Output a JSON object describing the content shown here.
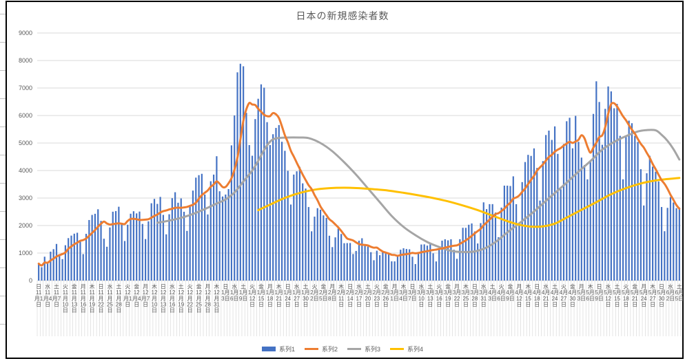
{
  "frame": {
    "background": "#FFFFFF",
    "border_color": "#000000"
  },
  "title": {
    "text": "日本の新規感染者数",
    "color": "#595959"
  },
  "colors": {
    "bar": "#4472C4",
    "line2": "#ED7D31",
    "line3": "#A5A5A5",
    "line4": "#FFC000",
    "grid": "#D9D9D9",
    "axis_text": "#595959"
  },
  "y_axis": {
    "min": 0,
    "max": 9000,
    "step": 1000,
    "labels": [
      "0",
      "1000",
      "2000",
      "3000",
      "4000",
      "5000",
      "6000",
      "7000",
      "8000",
      "9000"
    ]
  },
  "x_axis": {
    "note": "ticks every 3 days, weekday shown above date",
    "ticks": [
      {
        "w": "日",
        "m": "11",
        "d": "1"
      },
      {
        "w": "水",
        "m": "11",
        "d": "4"
      },
      {
        "w": "土",
        "m": "11",
        "d": "7"
      },
      {
        "w": "火",
        "m": "11",
        "d": "10"
      },
      {
        "w": "金",
        "m": "11",
        "d": "13"
      },
      {
        "w": "月",
        "m": "11",
        "d": "16"
      },
      {
        "w": "木",
        "m": "11",
        "d": "19"
      },
      {
        "w": "日",
        "m": "11",
        "d": "22"
      },
      {
        "w": "水",
        "m": "11",
        "d": "25"
      },
      {
        "w": "土",
        "m": "11",
        "d": "28"
      },
      {
        "w": "火",
        "m": "12",
        "d": "1"
      },
      {
        "w": "金",
        "m": "12",
        "d": "4"
      },
      {
        "w": "月",
        "m": "12",
        "d": "7"
      },
      {
        "w": "木",
        "m": "12",
        "d": "10"
      },
      {
        "w": "日",
        "m": "12",
        "d": "13"
      },
      {
        "w": "水",
        "m": "12",
        "d": "16"
      },
      {
        "w": "土",
        "m": "12",
        "d": "19"
      },
      {
        "w": "火",
        "m": "12",
        "d": "22"
      },
      {
        "w": "金",
        "m": "12",
        "d": "25"
      },
      {
        "w": "月",
        "m": "12",
        "d": "28"
      },
      {
        "w": "木",
        "m": "12",
        "d": "31"
      },
      {
        "w": "日",
        "m": "1",
        "d": "3"
      },
      {
        "w": "水",
        "m": "1",
        "d": "6"
      },
      {
        "w": "土",
        "m": "1",
        "d": "9"
      },
      {
        "w": "火",
        "m": "1",
        "d": "12"
      },
      {
        "w": "金",
        "m": "1",
        "d": "15"
      },
      {
        "w": "月",
        "m": "1",
        "d": "18"
      },
      {
        "w": "木",
        "m": "1",
        "d": "21"
      },
      {
        "w": "日",
        "m": "1",
        "d": "24"
      },
      {
        "w": "水",
        "m": "1",
        "d": "27"
      },
      {
        "w": "土",
        "m": "1",
        "d": "30"
      },
      {
        "w": "火",
        "m": "2",
        "d": "2"
      },
      {
        "w": "金",
        "m": "2",
        "d": "5"
      },
      {
        "w": "月",
        "m": "2",
        "d": "8"
      },
      {
        "w": "木",
        "m": "2",
        "d": "11"
      },
      {
        "w": "日",
        "m": "2",
        "d": "14"
      },
      {
        "w": "水",
        "m": "2",
        "d": "17"
      },
      {
        "w": "土",
        "m": "2",
        "d": "20"
      },
      {
        "w": "火",
        "m": "2",
        "d": "23"
      },
      {
        "w": "金",
        "m": "2",
        "d": "26"
      },
      {
        "w": "月",
        "m": "3",
        "d": "1"
      },
      {
        "w": "木",
        "m": "3",
        "d": "4"
      },
      {
        "w": "日",
        "m": "3",
        "d": "7"
      },
      {
        "w": "水",
        "m": "3",
        "d": "10"
      },
      {
        "w": "土",
        "m": "3",
        "d": "13"
      },
      {
        "w": "火",
        "m": "3",
        "d": "16"
      },
      {
        "w": "金",
        "m": "3",
        "d": "19"
      },
      {
        "w": "月",
        "m": "3",
        "d": "22"
      },
      {
        "w": "木",
        "m": "3",
        "d": "25"
      },
      {
        "w": "日",
        "m": "3",
        "d": "28"
      },
      {
        "w": "水",
        "m": "3",
        "d": "31"
      },
      {
        "w": "土",
        "m": "4",
        "d": "3"
      },
      {
        "w": "火",
        "m": "4",
        "d": "6"
      },
      {
        "w": "金",
        "m": "4",
        "d": "9"
      },
      {
        "w": "月",
        "m": "4",
        "d": "12"
      },
      {
        "w": "木",
        "m": "4",
        "d": "15"
      },
      {
        "w": "日",
        "m": "4",
        "d": "18"
      },
      {
        "w": "水",
        "m": "4",
        "d": "21"
      },
      {
        "w": "土",
        "m": "4",
        "d": "24"
      },
      {
        "w": "火",
        "m": "4",
        "d": "27"
      },
      {
        "w": "金",
        "m": "4",
        "d": "30"
      },
      {
        "w": "月",
        "m": "5",
        "d": "3"
      },
      {
        "w": "木",
        "m": "5",
        "d": "6"
      },
      {
        "w": "日",
        "m": "5",
        "d": "9"
      },
      {
        "w": "水",
        "m": "5",
        "d": "12"
      },
      {
        "w": "土",
        "m": "5",
        "d": "15"
      },
      {
        "w": "火",
        "m": "5",
        "d": "18"
      },
      {
        "w": "金",
        "m": "5",
        "d": "21"
      },
      {
        "w": "月",
        "m": "5",
        "d": "24"
      },
      {
        "w": "木",
        "m": "5",
        "d": "27"
      },
      {
        "w": "日",
        "m": "5",
        "d": "30"
      },
      {
        "w": "水",
        "m": "6",
        "d": "2"
      },
      {
        "w": "土",
        "m": "6",
        "d": "5"
      }
    ]
  },
  "legend": {
    "items": [
      {
        "label": "系列1",
        "color": "#4472C4",
        "swatch": "bar"
      },
      {
        "label": "系列2",
        "color": "#ED7D31",
        "swatch": "line"
      },
      {
        "label": "系列3",
        "color": "#A5A5A5",
        "swatch": "line"
      },
      {
        "label": "系列4",
        "color": "#FFC000",
        "swatch": "line"
      }
    ]
  },
  "chart_data": {
    "type": "combo",
    "title": "日本の新規感染者数",
    "x_unit": "day",
    "x_range_labels": [
      "11月1日",
      "6月5日"
    ],
    "n_points": 217,
    "ylim": [
      0,
      9000
    ],
    "grid": true,
    "legend_position": "bottom",
    "series": [
      {
        "name": "系列1",
        "type": "bar",
        "color": "#4472C4",
        "values": [
          614,
          486,
          867,
          620,
          1050,
          1141,
          1331,
          957,
          780,
          1284,
          1543,
          1634,
          1704,
          1738,
          1440,
          962,
          1699,
          2201,
          2386,
          2427,
          2592,
          2168,
          1521,
          1229,
          1931,
          2503,
          2527,
          2684,
          2066,
          1438,
          2030,
          2430,
          2520,
          2442,
          2508,
          2058,
          1509,
          2152,
          2810,
          2969,
          2787,
          3041,
          2388,
          1680,
          2410,
          2994,
          3211,
          2829,
          2986,
          2501,
          1805,
          2688,
          3271,
          3742,
          3832,
          3881,
          3127,
          2403,
          3610,
          3852,
          4520,
          3246,
          3056,
          3127,
          3325,
          4915,
          6004,
          7570,
          7882,
          7790,
          6097,
          4925,
          4538,
          5870,
          6609,
          7133,
          7014,
          5759,
          4925,
          5320,
          5549,
          5653,
          5045,
          4717,
          3989,
          2764,
          3853,
          3971,
          4133,
          3534,
          3344,
          2673,
          1791,
          2324,
          2631,
          2576,
          2370,
          2277,
          1630,
          1216,
          1570,
          1887,
          1693,
          1358,
          1362,
          1364,
          965,
          1077,
          1448,
          1538,
          1301,
          1234,
          1032,
          739,
          1085,
          922,
          1076,
          1029,
          999,
          698,
          697,
          888,
          1121,
          1173,
          1148,
          1136,
          866,
          599,
          972,
          1310,
          1316,
          1271,
          1320,
          989,
          695,
          1133,
          1451,
          1500,
          1463,
          1500,
          1120,
          791,
          1504,
          1918,
          1917,
          2029,
          2076,
          1785,
          1348,
          2087,
          2843,
          2597,
          2778,
          2779,
          2472,
          1576,
          2653,
          3451,
          3450,
          3438,
          3789,
          2777,
          2087,
          3579,
          4309,
          4570,
          4532,
          4805,
          4093,
          2908,
          4342,
          5291,
          5452,
          5113,
          5605,
          4605,
          3318,
          4965,
          5792,
          5918,
          4808,
          5986,
          5044,
          4470,
          4199,
          3680,
          4365,
          6058,
          7244,
          6493,
          4936,
          6243,
          7057,
          6879,
          6263,
          6421,
          5262,
          3680,
          5229,
          5814,
          5720,
          5260,
          5040,
          4048,
          2729,
          3901,
          4536,
          4142,
          3955,
          3604,
          2674,
          1794,
          2643,
          3035,
          2837,
          2632,
          2654
        ]
      },
      {
        "name": "系列2",
        "type": "line",
        "color": "#ED7D31",
        "values": [
          614,
          550,
          656,
          647,
          727,
          796,
          873,
          922,
          964,
          1023,
          1155,
          1239,
          1319,
          1377,
          1446,
          1472,
          1531,
          1625,
          1733,
          1836,
          1958,
          2062,
          2142,
          2075,
          2036,
          2053,
          2067,
          2080,
          2066,
          2054,
          2168,
          2240,
          2242,
          2230,
          2205,
          2204,
          2214,
          2231,
          2286,
          2350,
          2399,
          2475,
          2522,
          2547,
          2584,
          2610,
          2644,
          2650,
          2643,
          2659,
          2677,
          2716,
          2756,
          2832,
          2975,
          3103,
          3192,
          3278,
          3409,
          3492,
          3604,
          3520,
          3402,
          3402,
          3534,
          3720,
          4028,
          4463,
          5126,
          5802,
          6226,
          6455,
          6401,
          6382,
          6244,
          6137,
          6027,
          5978,
          5978,
          6090,
          6044,
          5908,
          5609,
          5281,
          5028,
          4720,
          4510,
          4285,
          4067,
          3852,
          3655,
          3467,
          3328,
          3110,
          2919,
          2696,
          2530,
          2377,
          2228,
          2146,
          2039,
          1932,
          1806,
          1662,
          1531,
          1493,
          1457,
          1387,
          1324,
          1302,
          1294,
          1275,
          1228,
          1196,
          1197,
          1122,
          1056,
          1017,
          983,
          935,
          929,
          901,
          930,
          944,
          961,
          980,
          1004,
          990,
          1002,
          1029,
          1050,
          1067,
          1093,
          1111,
          1125,
          1148,
          1168,
          1194,
          1222,
          1247,
          1266,
          1280,
          1333,
          1399,
          1459,
          1540,
          1622,
          1717,
          1797,
          1880,
          2012,
          2109,
          2216,
          2317,
          2415,
          2447,
          2528,
          2615,
          2737,
          2831,
          2976,
          3019,
          3092,
          3224,
          3347,
          3507,
          3663,
          3808,
          3996,
          4114,
          4223,
          4363,
          4489,
          4572,
          4686,
          4759,
          4818,
          4907,
          4979,
          5045,
          5002,
          5056,
          5119,
          5283,
          5174,
          4872,
          4650,
          4829,
          5009,
          5216,
          5282,
          5574,
          6057,
          6416,
          6445,
          6327,
          6152,
          5972,
          5827,
          5650,
          5484,
          5341,
          5144,
          4970,
          4834,
          4645,
          4462,
          4237,
          4050,
          3845,
          3649,
          3515,
          3335,
          3121,
          2935,
          2746,
          2610
        ]
      },
      {
        "name": "系列3",
        "type": "line",
        "color": "#A5A5A5",
        "x_index_base": "0 = 11月1日",
        "points": [
          [
            40,
            2100
          ],
          [
            44,
            2180
          ],
          [
            48,
            2280
          ],
          [
            52,
            2420
          ],
          [
            56,
            2600
          ],
          [
            60,
            2800
          ],
          [
            63,
            2950
          ],
          [
            66,
            3200
          ],
          [
            69,
            3600
          ],
          [
            72,
            4000
          ],
          [
            74,
            4350
          ],
          [
            76,
            4750
          ],
          [
            78,
            5050
          ],
          [
            80,
            5170
          ],
          [
            84,
            5200
          ],
          [
            88,
            5200
          ],
          [
            91,
            5180
          ],
          [
            95,
            5000
          ],
          [
            99,
            4700
          ],
          [
            103,
            4300
          ],
          [
            107,
            3850
          ],
          [
            111,
            3350
          ],
          [
            115,
            2850
          ],
          [
            119,
            2350
          ],
          [
            123,
            1950
          ],
          [
            127,
            1650
          ],
          [
            131,
            1400
          ],
          [
            135,
            1220
          ],
          [
            139,
            1080
          ],
          [
            143,
            1040
          ],
          [
            147,
            1060
          ],
          [
            151,
            1200
          ],
          [
            155,
            1480
          ],
          [
            158,
            1750
          ],
          [
            162,
            2080
          ],
          [
            166,
            2420
          ],
          [
            170,
            2800
          ],
          [
            174,
            3180
          ],
          [
            178,
            3560
          ],
          [
            182,
            3960
          ],
          [
            186,
            4340
          ],
          [
            190,
            4760
          ],
          [
            194,
            5040
          ],
          [
            198,
            5250
          ],
          [
            202,
            5420
          ],
          [
            205,
            5470
          ],
          [
            208,
            5460
          ],
          [
            210,
            5300
          ],
          [
            212,
            5080
          ],
          [
            214,
            4780
          ],
          [
            216,
            4400
          ]
        ]
      },
      {
        "name": "系列4",
        "type": "line",
        "color": "#FFC000",
        "x_index_base": "0 = 11月1日",
        "points": [
          [
            74,
            2560
          ],
          [
            78,
            2760
          ],
          [
            82,
            2960
          ],
          [
            86,
            3120
          ],
          [
            90,
            3240
          ],
          [
            94,
            3320
          ],
          [
            98,
            3360
          ],
          [
            103,
            3375
          ],
          [
            108,
            3360
          ],
          [
            113,
            3320
          ],
          [
            118,
            3270
          ],
          [
            123,
            3190
          ],
          [
            128,
            3100
          ],
          [
            133,
            3000
          ],
          [
            138,
            2880
          ],
          [
            143,
            2730
          ],
          [
            148,
            2560
          ],
          [
            153,
            2360
          ],
          [
            158,
            2160
          ],
          [
            162,
            2030
          ],
          [
            166,
            1960
          ],
          [
            170,
            1970
          ],
          [
            174,
            2070
          ],
          [
            178,
            2290
          ],
          [
            183,
            2570
          ],
          [
            188,
            2850
          ],
          [
            193,
            3140
          ],
          [
            198,
            3360
          ],
          [
            203,
            3530
          ],
          [
            208,
            3640
          ],
          [
            212,
            3690
          ],
          [
            216,
            3730
          ]
        ]
      }
    ]
  }
}
